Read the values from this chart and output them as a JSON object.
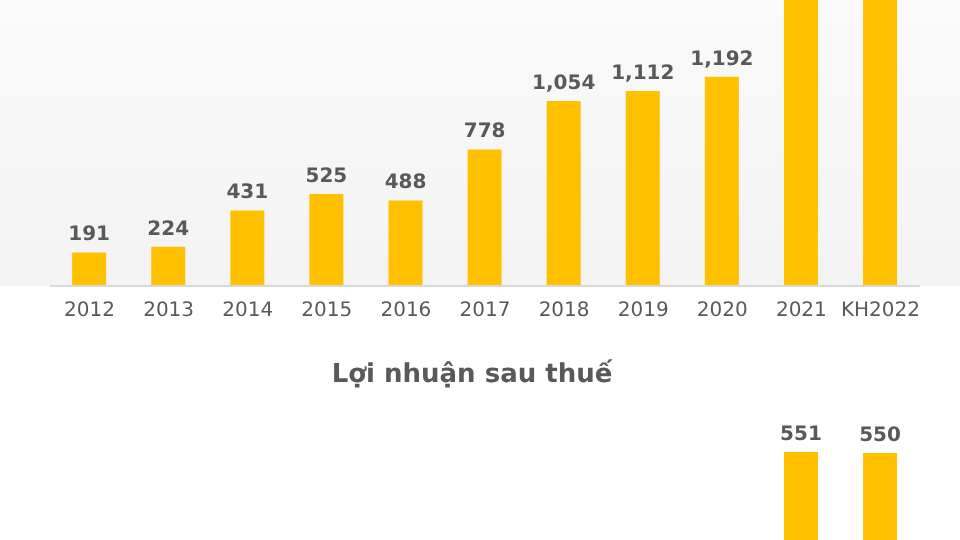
{
  "chart_data": [
    {
      "type": "bar",
      "categories": [
        "2012",
        "2013",
        "2014",
        "2015",
        "2016",
        "2017",
        "2018",
        "2019",
        "2020",
        "2021",
        "KH2022"
      ],
      "values": [
        191,
        224,
        431,
        525,
        488,
        778,
        1054,
        1112,
        1192,
        1630,
        1630
      ],
      "value_labels": [
        "191",
        "224",
        "431",
        "525",
        "488",
        "778",
        "1,054",
        "1,112",
        "1,192",
        null,
        null
      ],
      "color": "#ffc000",
      "ylim": [
        0,
        1630
      ],
      "tick_labels": "x"
    },
    {
      "type": "bar",
      "title": "Lợi nhuận sau thuế",
      "categories": [
        null,
        null,
        null,
        null,
        null,
        null,
        null,
        null,
        null,
        null,
        null
      ],
      "values": [
        null,
        null,
        null,
        null,
        null,
        null,
        null,
        null,
        null,
        551,
        550
      ],
      "value_labels": [
        null,
        null,
        null,
        null,
        null,
        null,
        null,
        null,
        null,
        "551",
        "550"
      ],
      "color": "#ffc000",
      "tick_labels": false
    }
  ]
}
